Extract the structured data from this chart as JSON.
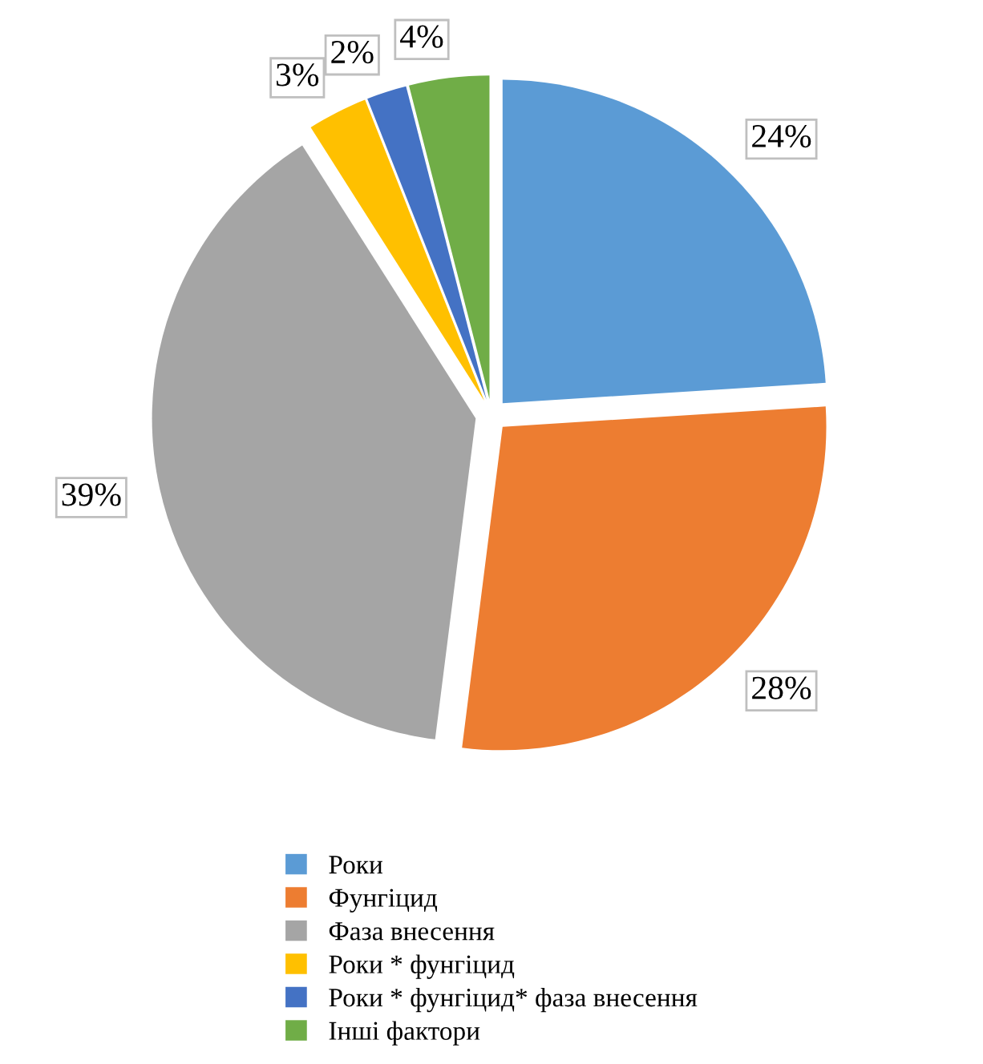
{
  "chart_data": {
    "type": "pie",
    "categories": [
      "Роки",
      "Фунгіцид",
      "Фаза внесення",
      "Роки * фунгіцид",
      "Роки * фунгіцид* фаза внесення",
      "Інші фактори"
    ],
    "values": [
      24,
      28,
      39,
      3,
      2,
      4
    ],
    "value_labels": [
      "24%",
      "28%",
      "39%",
      "3%",
      "2%",
      "4%"
    ],
    "colors": [
      "#5b9bd5",
      "#ed7d31",
      "#a5a5a5",
      "#ffc000",
      "#4472c4",
      "#70ad47"
    ],
    "legend": "bottom"
  }
}
